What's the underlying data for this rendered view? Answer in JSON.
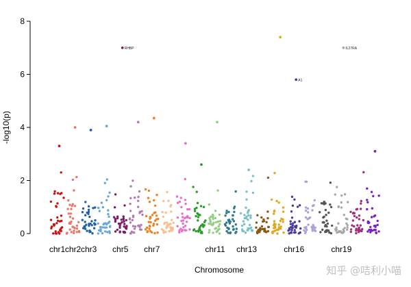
{
  "chart_data": {
    "type": "scatter",
    "title": "",
    "xlabel": "Chromosome",
    "ylabel": "-log10(p)",
    "ylim": [
      0,
      8
    ],
    "yticks": [
      0,
      2,
      4,
      6,
      8
    ],
    "chromosomes": [
      {
        "name": "chr1",
        "label": "chr1",
        "color": "#cc1010"
      },
      {
        "name": "chr2",
        "label": "chr2",
        "color": "#e8786a"
      },
      {
        "name": "chr3",
        "label": "chr3",
        "color": "#1f5fa8"
      },
      {
        "name": "chr4",
        "label": "",
        "color": "#6aa6d8"
      },
      {
        "name": "chr5",
        "label": "chr5",
        "color": "#7a1f62"
      },
      {
        "name": "chr6",
        "label": "",
        "color": "#b07ab4"
      },
      {
        "name": "chr7",
        "label": "chr7",
        "color": "#f08020"
      },
      {
        "name": "chr8",
        "label": "",
        "color": "#f8c090"
      },
      {
        "name": "chr9",
        "label": "",
        "color": "#e870c8"
      },
      {
        "name": "chr10",
        "label": "",
        "color": "#2a9a2a"
      },
      {
        "name": "chr11",
        "label": "chr11",
        "color": "#90d080"
      },
      {
        "name": "chr12",
        "label": "",
        "color": "#2a7a90"
      },
      {
        "name": "chr13",
        "label": "chr13",
        "color": "#7ac0c8"
      },
      {
        "name": "chr14",
        "label": "",
        "color": "#8a5a14"
      },
      {
        "name": "chr15",
        "label": "",
        "color": "#e0a820"
      },
      {
        "name": "chr16",
        "label": "chr16",
        "color": "#4a3aa0"
      },
      {
        "name": "chr17",
        "label": "",
        "color": "#b0a0d8"
      },
      {
        "name": "chr18",
        "label": "",
        "color": "#555555"
      },
      {
        "name": "chr19",
        "label": "chr19",
        "color": "#a8a8a8"
      },
      {
        "name": "chr20",
        "label": "",
        "color": "#a0307a"
      },
      {
        "name": "chr21",
        "label": "",
        "color": "#7a20c0"
      }
    ],
    "top_hits": [
      {
        "chr": "chr1",
        "value": 3.3
      },
      {
        "chr": "chr2",
        "value": 4.0
      },
      {
        "chr": "chr3",
        "value": 3.9
      },
      {
        "chr": "chr4",
        "value": 4.05
      },
      {
        "chr": "chr5",
        "value": 7.0
      },
      {
        "chr": "chr6",
        "value": 4.2
      },
      {
        "chr": "chr7",
        "value": 4.35
      },
      {
        "chr": "chr9",
        "value": 3.4
      },
      {
        "chr": "chr10",
        "value": 2.6
      },
      {
        "chr": "chr11",
        "value": 4.2
      },
      {
        "chr": "chr13",
        "value": 2.4
      },
      {
        "chr": "chr15",
        "value": 7.4
      },
      {
        "chr": "chr16",
        "value": 5.8
      },
      {
        "chr": "chr19",
        "value": 7.0
      },
      {
        "chr": "chr21",
        "value": 3.1
      }
    ],
    "annotations": [
      {
        "chr": "chr5",
        "value": 7.0,
        "text": "RHBP"
      },
      {
        "chr": "chr19",
        "value": 7.0,
        "text": "IL27RA"
      },
      {
        "chr": "chr16",
        "value": 5.8,
        "text": "A1"
      }
    ]
  },
  "watermark": "知乎 @咭利小喵"
}
